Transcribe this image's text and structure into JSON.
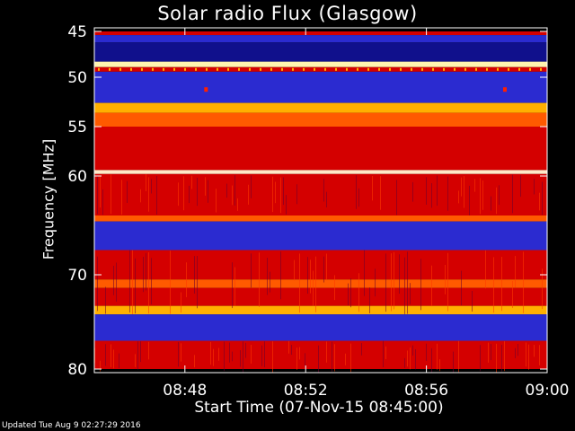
{
  "chart_data": {
    "type": "heatmap",
    "title": "Solar radio Flux (Glasgow)",
    "xlabel": "Start Time (07-Nov-15 08:45:00)",
    "ylabel": "Frequency [MHz]",
    "x_ticks": [
      "08:48",
      "08:52",
      "08:56",
      "09:00"
    ],
    "x_tick_minutes": [
      3,
      7,
      11,
      15
    ],
    "x_range_minutes": [
      0,
      15
    ],
    "y_ticks": [
      45,
      50,
      55,
      60,
      70,
      80
    ],
    "y_range_mhz": [
      45,
      80
    ],
    "y_scale": "nonlinear (reciprocal-like)",
    "colormap": [
      "#1a1aa0",
      "#0000ff",
      "#ff0000",
      "#ff7a00",
      "#ffff00",
      "#ffffff"
    ],
    "bands": [
      {
        "f_start": 45.0,
        "f_end": 45.4,
        "level": "red"
      },
      {
        "f_start": 45.4,
        "f_end": 46.2,
        "level": "blue"
      },
      {
        "f_start": 46.2,
        "f_end": 48.3,
        "level": "dark-blue"
      },
      {
        "f_start": 48.3,
        "f_end": 48.9,
        "level": "yellow-white"
      },
      {
        "f_start": 48.9,
        "f_end": 49.4,
        "level": "red"
      },
      {
        "f_start": 49.4,
        "f_end": 52.6,
        "level": "blue"
      },
      {
        "f_start": 52.6,
        "f_end": 53.6,
        "level": "yellow"
      },
      {
        "f_start": 53.6,
        "f_end": 55.0,
        "level": "orange"
      },
      {
        "f_start": 55.0,
        "f_end": 59.4,
        "level": "red"
      },
      {
        "f_start": 59.4,
        "f_end": 59.8,
        "level": "white"
      },
      {
        "f_start": 59.8,
        "f_end": 64.0,
        "level": "red"
      },
      {
        "f_start": 64.0,
        "f_end": 64.6,
        "level": "orange"
      },
      {
        "f_start": 64.6,
        "f_end": 67.5,
        "level": "blue"
      },
      {
        "f_start": 67.5,
        "f_end": 70.5,
        "level": "red"
      },
      {
        "f_start": 70.5,
        "f_end": 71.4,
        "level": "orange"
      },
      {
        "f_start": 71.4,
        "f_end": 73.3,
        "level": "red"
      },
      {
        "f_start": 73.3,
        "f_end": 74.2,
        "level": "yellow"
      },
      {
        "f_start": 74.2,
        "f_end": 77.0,
        "level": "blue"
      },
      {
        "f_start": 77.0,
        "f_end": 80.0,
        "level": "red"
      }
    ],
    "events": [
      {
        "time_minutes": 3.7,
        "freq_mhz": 51.2
      },
      {
        "time_minutes": 13.6,
        "freq_mhz": 51.2
      }
    ]
  },
  "footer": "Updated Tue Aug  9 02:27:29 2016"
}
